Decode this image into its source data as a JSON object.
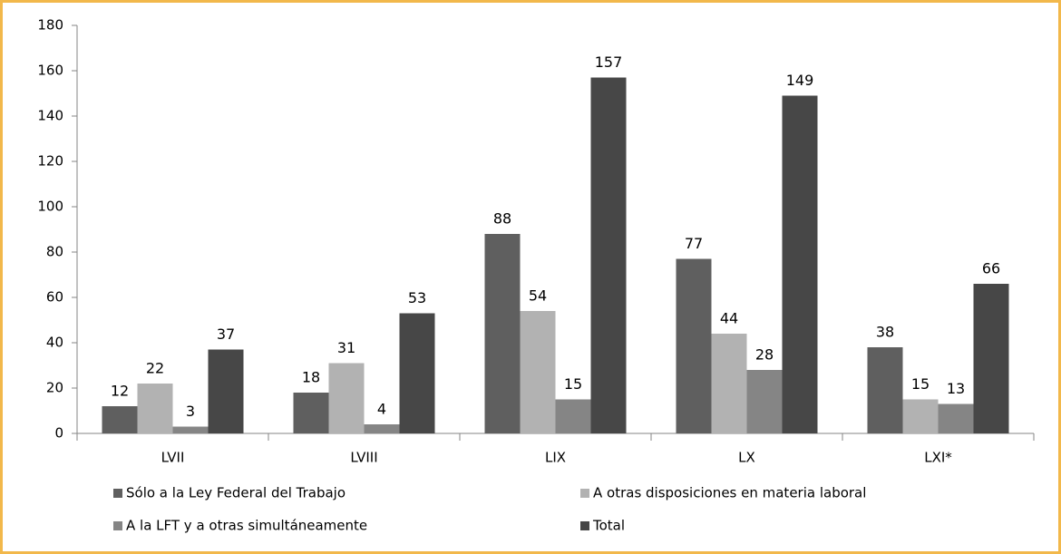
{
  "chart_data": {
    "type": "bar",
    "categories": [
      "LVII",
      "LVIII",
      "LIX",
      "LX",
      "LXI*"
    ],
    "series": [
      {
        "name": "Sólo a la Ley Federal del Trabajo",
        "color": "#5f5f5f",
        "values": [
          12,
          18,
          88,
          77,
          38
        ]
      },
      {
        "name": "A otras disposiciones en materia laboral",
        "color": "#b2b2b2",
        "values": [
          22,
          31,
          54,
          44,
          15
        ]
      },
      {
        "name": "A la LFT y a otras simultáneamente",
        "color": "#858585",
        "values": [
          3,
          4,
          15,
          28,
          13
        ]
      },
      {
        "name": "Total",
        "color": "#474747",
        "values": [
          37,
          53,
          157,
          149,
          66
        ]
      }
    ],
    "ylim": [
      0,
      180
    ],
    "yticks": [
      0,
      20,
      40,
      60,
      80,
      100,
      120,
      140,
      160,
      180
    ],
    "grid": false
  }
}
